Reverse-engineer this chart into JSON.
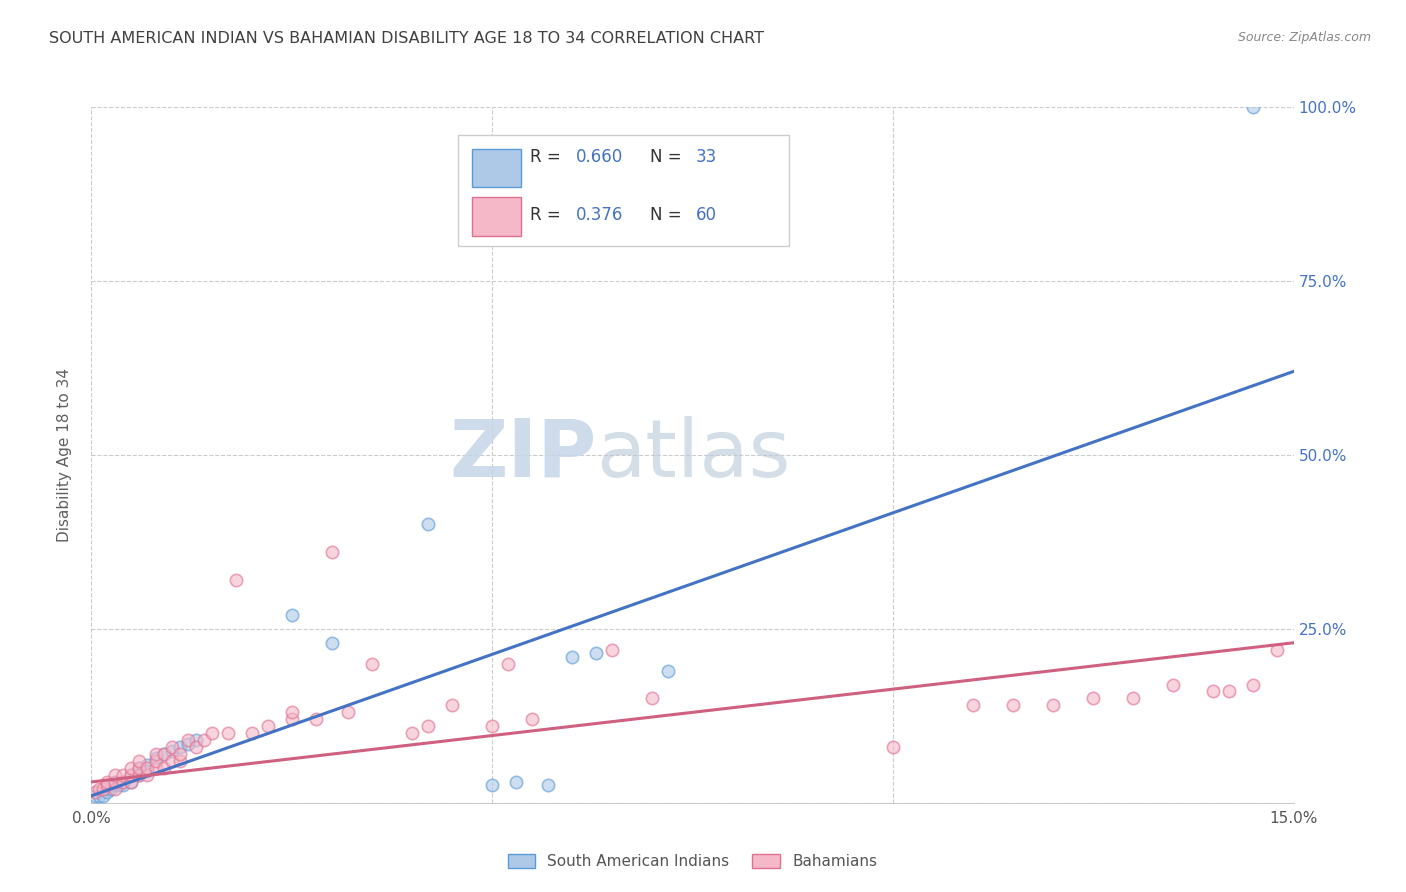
{
  "title": "SOUTH AMERICAN INDIAN VS BAHAMIAN DISABILITY AGE 18 TO 34 CORRELATION CHART",
  "source": "Source: ZipAtlas.com",
  "ylabel_label": "Disability Age 18 to 34",
  "legend_label1": "South American Indians",
  "legend_label2": "Bahamians",
  "legend_r1": "0.660",
  "legend_n1": "33",
  "legend_r2": "0.376",
  "legend_n2": "60",
  "watermark_zip": "ZIP",
  "watermark_atlas": "atlas",
  "blue_fill": "#aec9e8",
  "blue_edge": "#5b9bd5",
  "pink_fill": "#f4b8c8",
  "pink_edge": "#e07090",
  "blue_line_color": "#4472c4",
  "pink_line_color": "#d06080",
  "title_color": "#404040",
  "source_color": "#888888",
  "axis_value_color": "#4472c4",
  "ylabel_color": "#606060",
  "background_color": "#ffffff",
  "grid_color": "#cccccc",
  "xlim": [
    0.0,
    0.15
  ],
  "ylim": [
    0.0,
    1.0
  ],
  "blue_scatter_x": [
    0.0005,
    0.001,
    0.0015,
    0.002,
    0.002,
    0.0025,
    0.003,
    0.003,
    0.0035,
    0.004,
    0.004,
    0.005,
    0.005,
    0.006,
    0.006,
    0.007,
    0.007,
    0.008,
    0.009,
    0.01,
    0.011,
    0.012,
    0.013,
    0.025,
    0.03,
    0.042,
    0.05,
    0.053,
    0.057,
    0.06,
    0.063,
    0.072,
    0.145
  ],
  "blue_scatter_y": [
    0.01,
    0.01,
    0.01,
    0.02,
    0.015,
    0.02,
    0.025,
    0.03,
    0.025,
    0.03,
    0.025,
    0.04,
    0.03,
    0.05,
    0.04,
    0.055,
    0.045,
    0.065,
    0.07,
    0.075,
    0.08,
    0.085,
    0.09,
    0.27,
    0.23,
    0.4,
    0.025,
    0.03,
    0.025,
    0.21,
    0.215,
    0.19,
    1.0
  ],
  "pink_scatter_x": [
    0.0005,
    0.001,
    0.0015,
    0.002,
    0.002,
    0.003,
    0.003,
    0.003,
    0.004,
    0.004,
    0.005,
    0.005,
    0.005,
    0.006,
    0.006,
    0.006,
    0.007,
    0.007,
    0.008,
    0.008,
    0.008,
    0.009,
    0.009,
    0.01,
    0.01,
    0.011,
    0.011,
    0.012,
    0.013,
    0.014,
    0.015,
    0.017,
    0.018,
    0.02,
    0.022,
    0.025,
    0.025,
    0.028,
    0.03,
    0.032,
    0.035,
    0.04,
    0.042,
    0.045,
    0.05,
    0.052,
    0.055,
    0.065,
    0.07,
    0.1,
    0.11,
    0.115,
    0.12,
    0.125,
    0.13,
    0.135,
    0.14,
    0.142,
    0.145,
    0.148
  ],
  "pink_scatter_y": [
    0.015,
    0.02,
    0.02,
    0.025,
    0.03,
    0.02,
    0.03,
    0.04,
    0.03,
    0.04,
    0.03,
    0.04,
    0.05,
    0.04,
    0.05,
    0.06,
    0.04,
    0.05,
    0.05,
    0.06,
    0.07,
    0.05,
    0.07,
    0.06,
    0.08,
    0.06,
    0.07,
    0.09,
    0.08,
    0.09,
    0.1,
    0.1,
    0.32,
    0.1,
    0.11,
    0.12,
    0.13,
    0.12,
    0.36,
    0.13,
    0.2,
    0.1,
    0.11,
    0.14,
    0.11,
    0.2,
    0.12,
    0.22,
    0.15,
    0.08,
    0.14,
    0.14,
    0.14,
    0.15,
    0.15,
    0.17,
    0.16,
    0.16,
    0.17,
    0.22
  ],
  "blue_line_x": [
    0.0,
    0.15
  ],
  "blue_line_y": [
    0.01,
    0.62
  ],
  "pink_line_x": [
    0.0,
    0.15
  ],
  "pink_line_y": [
    0.03,
    0.23
  ]
}
